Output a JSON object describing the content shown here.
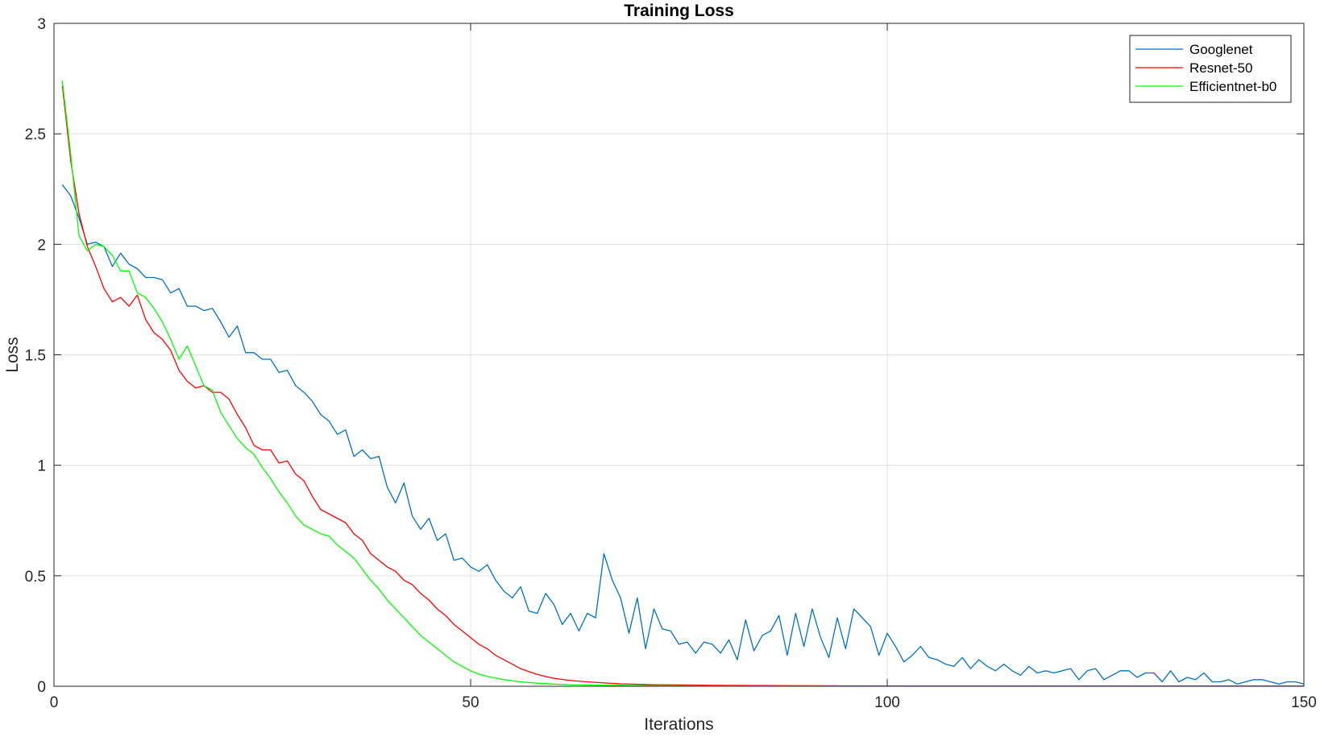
{
  "chart_data": {
    "type": "line",
    "title": "Training Loss",
    "xlabel": "Iterations",
    "ylabel": "Loss",
    "xlim": [
      0,
      150
    ],
    "ylim": [
      0,
      3
    ],
    "xticks": [
      0,
      50,
      100,
      150
    ],
    "yticks": [
      0,
      0.5,
      1,
      1.5,
      2,
      2.5,
      3
    ],
    "ytick_labels": [
      "0",
      "0.5",
      "1",
      "1.5",
      "2",
      "2.5",
      "3"
    ],
    "grid": true,
    "legend_position": "top-right",
    "series": [
      {
        "name": "Googlenet",
        "color": "#0072BD",
        "points": [
          [
            1,
            2.27
          ],
          [
            2,
            2.22
          ],
          [
            3,
            2.12
          ],
          [
            4,
            2.0
          ],
          [
            5,
            2.01
          ],
          [
            6,
            1.99
          ],
          [
            7,
            1.9
          ],
          [
            8,
            1.96
          ],
          [
            9,
            1.91
          ],
          [
            10,
            1.89
          ],
          [
            11,
            1.85
          ],
          [
            12,
            1.85
          ],
          [
            13,
            1.84
          ],
          [
            14,
            1.78
          ],
          [
            15,
            1.8
          ],
          [
            16,
            1.72
          ],
          [
            17,
            1.72
          ],
          [
            18,
            1.7
          ],
          [
            19,
            1.71
          ],
          [
            20,
            1.65
          ],
          [
            21,
            1.58
          ],
          [
            22,
            1.63
          ],
          [
            23,
            1.51
          ],
          [
            24,
            1.51
          ],
          [
            25,
            1.48
          ],
          [
            26,
            1.48
          ],
          [
            27,
            1.42
          ],
          [
            28,
            1.43
          ],
          [
            29,
            1.36
          ],
          [
            30,
            1.33
          ],
          [
            31,
            1.29
          ],
          [
            32,
            1.23
          ],
          [
            33,
            1.2
          ],
          [
            34,
            1.14
          ],
          [
            35,
            1.16
          ],
          [
            36,
            1.04
          ],
          [
            37,
            1.07
          ],
          [
            38,
            1.03
          ],
          [
            39,
            1.04
          ],
          [
            40,
            0.9
          ],
          [
            41,
            0.83
          ],
          [
            42,
            0.92
          ],
          [
            43,
            0.77
          ],
          [
            44,
            0.71
          ],
          [
            45,
            0.76
          ],
          [
            46,
            0.66
          ],
          [
            47,
            0.69
          ],
          [
            48,
            0.57
          ],
          [
            49,
            0.58
          ],
          [
            50,
            0.54
          ],
          [
            51,
            0.52
          ],
          [
            52,
            0.55
          ],
          [
            53,
            0.48
          ],
          [
            54,
            0.43
          ],
          [
            55,
            0.4
          ],
          [
            56,
            0.45
          ],
          [
            57,
            0.34
          ],
          [
            58,
            0.33
          ],
          [
            59,
            0.42
          ],
          [
            60,
            0.37
          ],
          [
            61,
            0.28
          ],
          [
            62,
            0.33
          ],
          [
            63,
            0.25
          ],
          [
            64,
            0.33
          ],
          [
            65,
            0.31
          ],
          [
            66,
            0.6
          ],
          [
            67,
            0.48
          ],
          [
            68,
            0.4
          ],
          [
            69,
            0.24
          ],
          [
            70,
            0.4
          ],
          [
            71,
            0.17
          ],
          [
            72,
            0.35
          ],
          [
            73,
            0.26
          ],
          [
            74,
            0.25
          ],
          [
            75,
            0.19
          ],
          [
            76,
            0.2
          ],
          [
            77,
            0.15
          ],
          [
            78,
            0.2
          ],
          [
            79,
            0.19
          ],
          [
            80,
            0.15
          ],
          [
            81,
            0.21
          ],
          [
            82,
            0.12
          ],
          [
            83,
            0.3
          ],
          [
            84,
            0.16
          ],
          [
            85,
            0.23
          ],
          [
            86,
            0.25
          ],
          [
            87,
            0.32
          ],
          [
            88,
            0.14
          ],
          [
            89,
            0.33
          ],
          [
            90,
            0.18
          ],
          [
            91,
            0.35
          ],
          [
            92,
            0.22
          ],
          [
            93,
            0.13
          ],
          [
            94,
            0.31
          ],
          [
            95,
            0.17
          ],
          [
            96,
            0.35
          ],
          [
            97,
            0.31
          ],
          [
            98,
            0.27
          ],
          [
            99,
            0.14
          ],
          [
            100,
            0.24
          ],
          [
            101,
            0.18
          ],
          [
            102,
            0.11
          ],
          [
            103,
            0.14
          ],
          [
            104,
            0.18
          ],
          [
            105,
            0.13
          ],
          [
            106,
            0.12
          ],
          [
            107,
            0.1
          ],
          [
            108,
            0.09
          ],
          [
            109,
            0.13
          ],
          [
            110,
            0.08
          ],
          [
            111,
            0.12
          ],
          [
            112,
            0.09
          ],
          [
            113,
            0.07
          ],
          [
            114,
            0.1
          ],
          [
            115,
            0.07
          ],
          [
            116,
            0.05
          ],
          [
            117,
            0.09
          ],
          [
            118,
            0.06
          ],
          [
            119,
            0.07
          ],
          [
            120,
            0.06
          ],
          [
            121,
            0.07
          ],
          [
            122,
            0.08
          ],
          [
            123,
            0.03
          ],
          [
            124,
            0.07
          ],
          [
            125,
            0.08
          ],
          [
            126,
            0.03
          ],
          [
            127,
            0.05
          ],
          [
            128,
            0.07
          ],
          [
            129,
            0.07
          ],
          [
            130,
            0.04
          ],
          [
            131,
            0.06
          ],
          [
            132,
            0.06
          ],
          [
            133,
            0.02
          ],
          [
            134,
            0.07
          ],
          [
            135,
            0.02
          ],
          [
            136,
            0.04
          ],
          [
            137,
            0.03
          ],
          [
            138,
            0.06
          ],
          [
            139,
            0.02
          ],
          [
            140,
            0.02
          ],
          [
            141,
            0.03
          ],
          [
            142,
            0.01
          ],
          [
            143,
            0.02
          ],
          [
            144,
            0.03
          ],
          [
            145,
            0.03
          ],
          [
            146,
            0.02
          ],
          [
            147,
            0.01
          ],
          [
            148,
            0.02
          ],
          [
            149,
            0.02
          ],
          [
            150,
            0.01
          ]
        ]
      },
      {
        "name": "Resnet-50",
        "color": "#FF0000",
        "points": [
          [
            1,
            2.72
          ],
          [
            2,
            2.38
          ],
          [
            3,
            2.14
          ],
          [
            4,
            1.99
          ],
          [
            5,
            1.9
          ],
          [
            6,
            1.8
          ],
          [
            7,
            1.74
          ],
          [
            8,
            1.76
          ],
          [
            9,
            1.72
          ],
          [
            10,
            1.77
          ],
          [
            11,
            1.66
          ],
          [
            12,
            1.6
          ],
          [
            13,
            1.57
          ],
          [
            14,
            1.52
          ],
          [
            15,
            1.43
          ],
          [
            16,
            1.38
          ],
          [
            17,
            1.35
          ],
          [
            18,
            1.36
          ],
          [
            19,
            1.33
          ],
          [
            20,
            1.33
          ],
          [
            21,
            1.3
          ],
          [
            22,
            1.23
          ],
          [
            23,
            1.17
          ],
          [
            24,
            1.09
          ],
          [
            25,
            1.07
          ],
          [
            26,
            1.07
          ],
          [
            27,
            1.01
          ],
          [
            28,
            1.02
          ],
          [
            29,
            0.96
          ],
          [
            30,
            0.93
          ],
          [
            31,
            0.86
          ],
          [
            32,
            0.8
          ],
          [
            33,
            0.78
          ],
          [
            34,
            0.76
          ],
          [
            35,
            0.74
          ],
          [
            36,
            0.69
          ],
          [
            37,
            0.66
          ],
          [
            38,
            0.6
          ],
          [
            39,
            0.57
          ],
          [
            40,
            0.54
          ],
          [
            41,
            0.52
          ],
          [
            42,
            0.48
          ],
          [
            43,
            0.46
          ],
          [
            44,
            0.42
          ],
          [
            45,
            0.39
          ],
          [
            46,
            0.35
          ],
          [
            47,
            0.32
          ],
          [
            48,
            0.28
          ],
          [
            49,
            0.25
          ],
          [
            50,
            0.22
          ],
          [
            51,
            0.19
          ],
          [
            52,
            0.17
          ],
          [
            53,
            0.14
          ],
          [
            54,
            0.12
          ],
          [
            55,
            0.1
          ],
          [
            56,
            0.08
          ],
          [
            57,
            0.066
          ],
          [
            58,
            0.054
          ],
          [
            59,
            0.044
          ],
          [
            60,
            0.036
          ],
          [
            62,
            0.026
          ],
          [
            64,
            0.02
          ],
          [
            66,
            0.015
          ],
          [
            68,
            0.011
          ],
          [
            70,
            0.009
          ],
          [
            72,
            0.007
          ],
          [
            76,
            0.006
          ],
          [
            80,
            0.004
          ],
          [
            86,
            0.003
          ],
          [
            95,
            0.002
          ],
          [
            110,
            0.001
          ],
          [
            130,
            0.001
          ],
          [
            150,
            0.001
          ]
        ]
      },
      {
        "name": "Efficientnet-b0",
        "color": "#00FF00",
        "points": [
          [
            1,
            2.74
          ],
          [
            2,
            2.41
          ],
          [
            3,
            2.04
          ],
          [
            4,
            1.97
          ],
          [
            5,
            2.0
          ],
          [
            6,
            1.99
          ],
          [
            7,
            1.95
          ],
          [
            8,
            1.88
          ],
          [
            9,
            1.88
          ],
          [
            10,
            1.78
          ],
          [
            11,
            1.76
          ],
          [
            12,
            1.71
          ],
          [
            13,
            1.65
          ],
          [
            14,
            1.57
          ],
          [
            15,
            1.48
          ],
          [
            16,
            1.54
          ],
          [
            17,
            1.45
          ],
          [
            18,
            1.36
          ],
          [
            19,
            1.34
          ],
          [
            20,
            1.24
          ],
          [
            21,
            1.18
          ],
          [
            22,
            1.12
          ],
          [
            23,
            1.08
          ],
          [
            24,
            1.05
          ],
          [
            25,
            0.99
          ],
          [
            26,
            0.94
          ],
          [
            27,
            0.88
          ],
          [
            28,
            0.83
          ],
          [
            29,
            0.77
          ],
          [
            30,
            0.73
          ],
          [
            31,
            0.71
          ],
          [
            32,
            0.69
          ],
          [
            33,
            0.68
          ],
          [
            34,
            0.64
          ],
          [
            35,
            0.61
          ],
          [
            36,
            0.58
          ],
          [
            37,
            0.53
          ],
          [
            38,
            0.48
          ],
          [
            39,
            0.44
          ],
          [
            40,
            0.39
          ],
          [
            41,
            0.35
          ],
          [
            42,
            0.31
          ],
          [
            43,
            0.27
          ],
          [
            44,
            0.23
          ],
          [
            45,
            0.2
          ],
          [
            46,
            0.17
          ],
          [
            47,
            0.14
          ],
          [
            48,
            0.11
          ],
          [
            49,
            0.09
          ],
          [
            50,
            0.07
          ],
          [
            51,
            0.055
          ],
          [
            52,
            0.045
          ],
          [
            53,
            0.037
          ],
          [
            54,
            0.03
          ],
          [
            55,
            0.025
          ],
          [
            56,
            0.02
          ],
          [
            58,
            0.014
          ],
          [
            60,
            0.01
          ],
          [
            62,
            0.007
          ],
          [
            65,
            0.005
          ],
          [
            70,
            0.003
          ],
          [
            80,
            0.001
          ],
          [
            100,
            0.0005
          ],
          [
            150,
            0.0002
          ]
        ]
      }
    ]
  }
}
